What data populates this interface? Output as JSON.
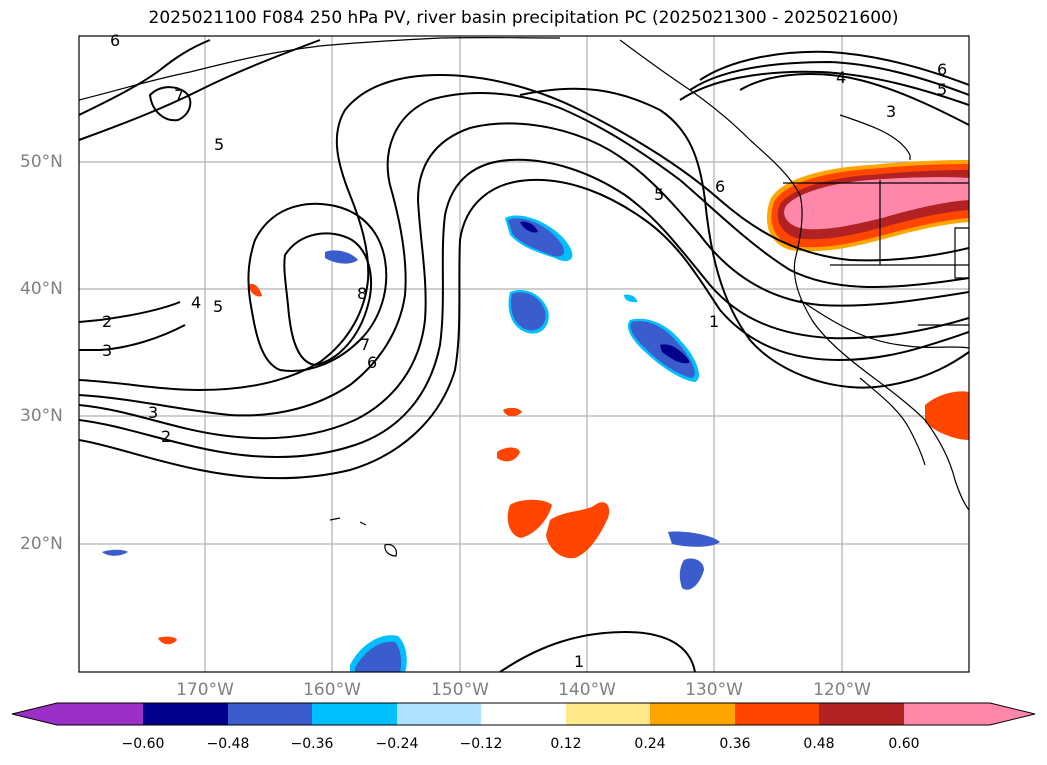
{
  "title": "2025021100 F084 250 hPa PV, river basin precipitation PC (2025021300 - 2025021600)",
  "lat_labels": [
    "50°N",
    "40°N",
    "30°N",
    "20°N"
  ],
  "lon_labels": [
    "170°W",
    "160°W",
    "150°W",
    "140°W",
    "130°W",
    "120°W"
  ],
  "contour_labels": {
    "c7": "7",
    "c5a": "5",
    "c2": "2",
    "c3": "3",
    "c4": "4",
    "c5b": "5",
    "c8": "8",
    "c6": "6",
    "c7b": "7",
    "c3b": "3",
    "c2b": "2",
    "c1": "1",
    "c5c": "5",
    "c6b": "6",
    "c4b": "4",
    "c3c": "3",
    "c6c": "6",
    "c5d": "5",
    "c1b": "1",
    "c6d": "6"
  },
  "colorbar": {
    "ticks": [
      "−0.60",
      "−0.48",
      "−0.36",
      "−0.24",
      "−0.12",
      "0.12",
      "0.24",
      "0.36",
      "0.48",
      "0.60"
    ],
    "colors": [
      "#9b30c8",
      "#00008b",
      "#3a5ccc",
      "#00bfff",
      "#b0e2ff",
      "#ffffff",
      "#ffe98a",
      "#ffa500",
      "#ff4500",
      "#b22222",
      "#ff88aa"
    ]
  },
  "fills": {
    "neg_strong": "#00008b",
    "neg_mid": "#3a5ccc",
    "neg_light": "#00bfff",
    "neg_faint": "#b0e2ff",
    "pos_faint": "#ffe98a",
    "pos_mid": "#ffa500",
    "pos_strong": "#ff4500",
    "pos_dark": "#b22222",
    "pos_max": "#ff88aa"
  }
}
